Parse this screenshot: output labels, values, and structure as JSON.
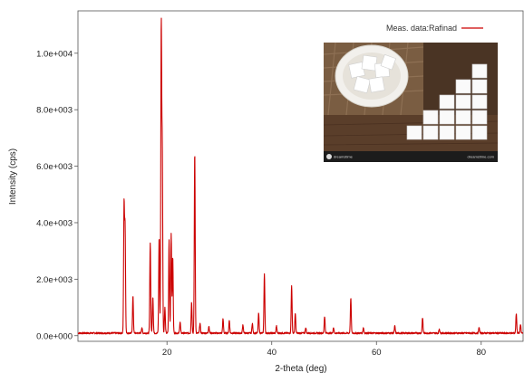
{
  "chart_data": {
    "type": "line",
    "xlabel": "2-theta (deg)",
    "ylabel": "Intensity (cps)",
    "xlim": [
      3,
      88
    ],
    "ylim": [
      -200,
      11500
    ],
    "x_ticks": [
      20,
      40,
      60,
      80
    ],
    "x_tick_labels": [
      "20",
      "40",
      "60",
      "80"
    ],
    "y_ticks": [
      0,
      2000,
      4000,
      6000,
      8000,
      10000
    ],
    "y_tick_labels": [
      "0.0e+000",
      "2.0e+003",
      "4.0e+003",
      "6.0e+003",
      "8.0e+003",
      "1.0e+004"
    ],
    "grid": false,
    "legend_position": "top-right",
    "series": [
      {
        "name": "Meas. data:Rafinad",
        "color": "#cc0000",
        "baseline": 60,
        "peaks": [
          {
            "x": 11.8,
            "y": 4500
          },
          {
            "x": 12.0,
            "y": 3700
          },
          {
            "x": 13.5,
            "y": 1300
          },
          {
            "x": 15.2,
            "y": 200
          },
          {
            "x": 16.8,
            "y": 3200
          },
          {
            "x": 17.3,
            "y": 1300
          },
          {
            "x": 18.5,
            "y": 3400
          },
          {
            "x": 18.9,
            "y": 10800
          },
          {
            "x": 19.1,
            "y": 6300
          },
          {
            "x": 19.6,
            "y": 900
          },
          {
            "x": 20.4,
            "y": 3300
          },
          {
            "x": 20.8,
            "y": 3500
          },
          {
            "x": 21.1,
            "y": 2700
          },
          {
            "x": 22.5,
            "y": 400
          },
          {
            "x": 24.7,
            "y": 1100
          },
          {
            "x": 25.3,
            "y": 6400
          },
          {
            "x": 26.3,
            "y": 350
          },
          {
            "x": 28.0,
            "y": 250
          },
          {
            "x": 30.7,
            "y": 500
          },
          {
            "x": 31.9,
            "y": 450
          },
          {
            "x": 34.5,
            "y": 300
          },
          {
            "x": 36.3,
            "y": 350
          },
          {
            "x": 37.5,
            "y": 700
          },
          {
            "x": 38.6,
            "y": 2100
          },
          {
            "x": 40.9,
            "y": 250
          },
          {
            "x": 43.8,
            "y": 1700
          },
          {
            "x": 44.5,
            "y": 700
          },
          {
            "x": 46.5,
            "y": 200
          },
          {
            "x": 50.1,
            "y": 600
          },
          {
            "x": 51.8,
            "y": 200
          },
          {
            "x": 55.1,
            "y": 1250
          },
          {
            "x": 57.5,
            "y": 200
          },
          {
            "x": 63.5,
            "y": 250
          },
          {
            "x": 68.8,
            "y": 550
          },
          {
            "x": 72.0,
            "y": 150
          },
          {
            "x": 79.6,
            "y": 200
          },
          {
            "x": 86.7,
            "y": 700
          },
          {
            "x": 87.5,
            "y": 300
          }
        ]
      }
    ]
  },
  "inset_photo": {
    "brand_text": "dreamstime",
    "caption_text": "dreamstime.com"
  }
}
